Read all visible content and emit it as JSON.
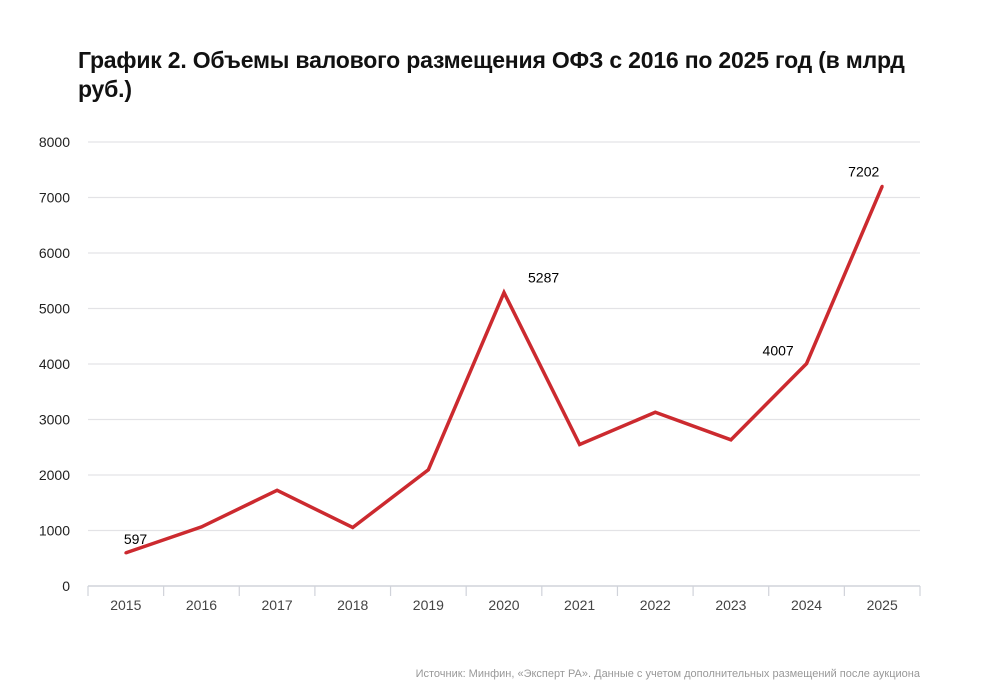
{
  "chart_data": {
    "type": "line",
    "title": "График 2. Объемы валового размещения ОФЗ с 2016 по 2025 год (в млрд руб.)",
    "xlabel": "",
    "ylabel": "",
    "categories": [
      "2015",
      "2016",
      "2017",
      "2018",
      "2019",
      "2020",
      "2021",
      "2022",
      "2023",
      "2024",
      "2025"
    ],
    "series": [
      {
        "values": [
          597,
          1065,
          1724,
          1054,
          2095,
          5287,
          2550,
          3130,
          2634,
          4007,
          7202
        ],
        "color": "#cc2a2f"
      }
    ],
    "data_labels": [
      {
        "category": "2015",
        "text": "597"
      },
      {
        "category": "2020",
        "text": "5287"
      },
      {
        "category": "2024",
        "text": "4007"
      },
      {
        "category": "2025",
        "text": "7202"
      }
    ],
    "ylim": [
      0,
      8000
    ],
    "yticks": [
      "0",
      "1000",
      "2000",
      "3000",
      "4000",
      "5000",
      "6000",
      "7000",
      "8000"
    ],
    "grid": true,
    "legend": "none",
    "source": "Источник: Минфин, «Эксперт РА». Данные с учетом дополнительных размещений после аукциона"
  }
}
